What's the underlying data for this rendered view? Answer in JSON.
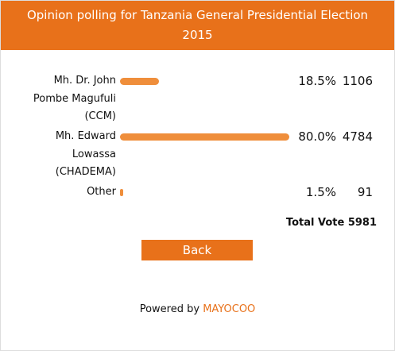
{
  "header": {
    "title": "Opinion polling for Tanzania General Presidential Election 2015"
  },
  "poll": {
    "options": [
      {
        "name": "Mh. Dr. John Pombe Magufuli (CCM)",
        "percent": {
          "value": 18.5,
          "label": "18.5%"
        },
        "votes": 1106
      },
      {
        "name": "Mh. Edward Lowassa (CHADEMA)",
        "percent": {
          "value": 80.0,
          "label": "80.0%"
        },
        "votes": 4784
      },
      {
        "name": "Other",
        "percent": {
          "value": 1.5,
          "label": "1.5%"
        },
        "votes": 91
      }
    ],
    "total_label": "Total Vote",
    "total": 5981
  },
  "button": {
    "label": "Back"
  },
  "footer": {
    "text": "Powered by",
    "brand": "MAYOCOO"
  }
}
